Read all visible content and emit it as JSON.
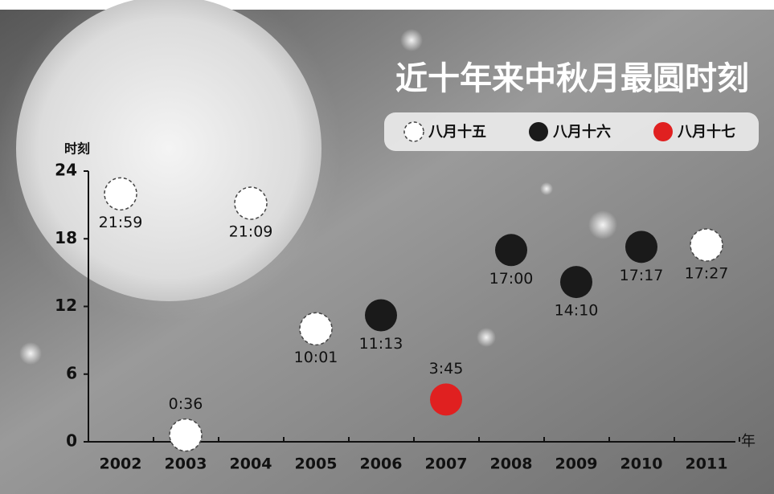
{
  "chart_data": {
    "type": "scatter",
    "title": "近十年来中秋月最圆时刻",
    "y_label": "时刻",
    "x_label": "年",
    "categories": [
      "2002",
      "2003",
      "2004",
      "2005",
      "2006",
      "2007",
      "2008",
      "2009",
      "2010",
      "2011"
    ],
    "ylim": [
      0,
      24
    ],
    "yticks": [
      0,
      6,
      12,
      18,
      24
    ],
    "legend": "top-right",
    "series": [
      {
        "name": "八月十五",
        "color": "#ffffff",
        "values": [
          21.983,
          0.6,
          21.15,
          10.017,
          null,
          null,
          null,
          null,
          null,
          17.45
        ],
        "value_labels": [
          "21:59",
          "0:36",
          "21:09",
          "10:01",
          null,
          null,
          null,
          null,
          null,
          "17:27"
        ]
      },
      {
        "name": "八月十六",
        "color": "#1a1a1a",
        "values": [
          null,
          null,
          null,
          null,
          11.217,
          null,
          17,
          14.167,
          17.283,
          null
        ],
        "value_labels": [
          null,
          null,
          null,
          null,
          "11:13",
          null,
          "17:00",
          "14:10",
          "17:17",
          null
        ]
      },
      {
        "name": "八月十七",
        "color": "#e02020",
        "values": [
          null,
          null,
          null,
          null,
          null,
          3.75,
          null,
          null,
          null,
          null
        ],
        "value_labels": [
          null,
          null,
          null,
          null,
          null,
          "3:45",
          null,
          null,
          null,
          null
        ]
      }
    ]
  }
}
